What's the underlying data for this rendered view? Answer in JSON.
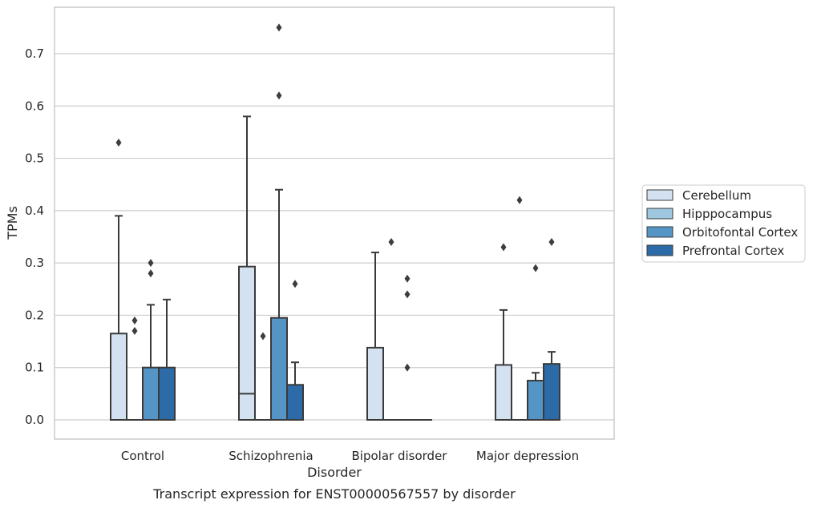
{
  "chart_data": {
    "type": "box",
    "xlabel": "Disorder",
    "ylabel": "TPMs",
    "caption": "Transcript expression for ENST00000567557 by disorder",
    "ylim": [
      -0.037,
      0.787
    ],
    "yticks": [
      0.0,
      0.1,
      0.2,
      0.3,
      0.4,
      0.5,
      0.6,
      0.7
    ],
    "ytick_labels": [
      "0.0",
      "0.1",
      "0.2",
      "0.3",
      "0.4",
      "0.5",
      "0.6",
      "0.7"
    ],
    "grid": "horizontal",
    "legend_position": "right",
    "categories": [
      "Control",
      "Schizophrenia",
      "Bipolar disorder",
      "Major depression"
    ],
    "series": [
      {
        "name": "Cerebellum",
        "color": "#d3e1f0",
        "boxes": [
          {
            "q1": 0.0,
            "median": 0.0,
            "q3": 0.165,
            "whisker_low": 0.0,
            "whisker_high": 0.39,
            "outliers": [
              0.53
            ]
          },
          {
            "q1": 0.0,
            "median": 0.05,
            "q3": 0.293,
            "whisker_low": 0.0,
            "whisker_high": 0.58,
            "outliers": []
          },
          {
            "q1": 0.0,
            "median": 0.0,
            "q3": 0.138,
            "whisker_low": 0.0,
            "whisker_high": 0.32,
            "outliers": []
          },
          {
            "q1": 0.0,
            "median": 0.0,
            "q3": 0.105,
            "whisker_low": 0.0,
            "whisker_high": 0.21,
            "outliers": [
              0.33
            ]
          }
        ]
      },
      {
        "name": "Hipppocampus",
        "color": "#9fc6df",
        "boxes": [
          {
            "q1": 0.0,
            "median": 0.0,
            "q3": 0.0,
            "whisker_low": 0.0,
            "whisker_high": 0.0,
            "outliers": [
              0.17,
              0.19
            ]
          },
          {
            "q1": 0.0,
            "median": 0.0,
            "q3": 0.0,
            "whisker_low": 0.0,
            "whisker_high": 0.0,
            "outliers": [
              0.16
            ]
          },
          {
            "q1": 0.0,
            "median": 0.0,
            "q3": 0.0,
            "whisker_low": 0.0,
            "whisker_high": 0.0,
            "outliers": [
              0.34
            ]
          },
          {
            "q1": 0.0,
            "median": 0.0,
            "q3": 0.0,
            "whisker_low": 0.0,
            "whisker_high": 0.0,
            "outliers": [
              0.42
            ]
          }
        ]
      },
      {
        "name": "Orbitofontal Cortex",
        "color": "#5495c5",
        "boxes": [
          {
            "q1": 0.0,
            "median": 0.0,
            "q3": 0.1,
            "whisker_low": 0.0,
            "whisker_high": 0.22,
            "outliers": [
              0.28,
              0.3
            ]
          },
          {
            "q1": 0.0,
            "median": 0.0,
            "q3": 0.195,
            "whisker_low": 0.0,
            "whisker_high": 0.44,
            "outliers": [
              0.62,
              0.75
            ]
          },
          {
            "q1": 0.0,
            "median": 0.0,
            "q3": 0.0,
            "whisker_low": 0.0,
            "whisker_high": 0.0,
            "outliers": [
              0.1,
              0.24,
              0.27
            ]
          },
          {
            "q1": 0.0,
            "median": 0.0,
            "q3": 0.075,
            "whisker_low": 0.0,
            "whisker_high": 0.09,
            "outliers": [
              0.29
            ]
          }
        ]
      },
      {
        "name": "Prefrontal Cortex",
        "color": "#2c6ba7",
        "boxes": [
          {
            "q1": 0.0,
            "median": 0.0,
            "q3": 0.1,
            "whisker_low": 0.0,
            "whisker_high": 0.23,
            "outliers": []
          },
          {
            "q1": 0.0,
            "median": 0.0,
            "q3": 0.067,
            "whisker_low": 0.0,
            "whisker_high": 0.11,
            "outliers": [
              0.26
            ]
          },
          {
            "q1": 0.0,
            "median": 0.0,
            "q3": 0.0,
            "whisker_low": 0.0,
            "whisker_high": 0.0,
            "outliers": []
          },
          {
            "q1": 0.0,
            "median": 0.0,
            "q3": 0.107,
            "whisker_low": 0.0,
            "whisker_high": 0.13,
            "outliers": [
              0.34
            ]
          }
        ]
      }
    ]
  }
}
